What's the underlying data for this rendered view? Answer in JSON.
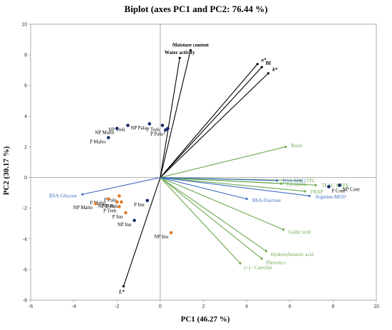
{
  "chart_data": {
    "type": "scatter",
    "title": "Biplot (axes PC1 and PC2: 76.44 %)",
    "xlabel": "PC1 (46.27 %)",
    "ylabel": "PC2 (30.17 %)",
    "xlim": [
      -6,
      10
    ],
    "ylim": [
      -8,
      10
    ],
    "xticks": [
      -6,
      -4,
      -2,
      0,
      2,
      4,
      6,
      8,
      10
    ],
    "yticks": [
      -8,
      -6,
      -4,
      -2,
      0,
      2,
      4,
      6,
      8,
      10
    ],
    "grid": false,
    "colors": {
      "navy": "#1a2a6c",
      "orange": "#e07b2a",
      "green": "#6aa84f",
      "blue": "#3d6cc0",
      "black": "#000000"
    },
    "vectors": [
      {
        "label": "Water activity",
        "x": 0.9,
        "y": 7.8,
        "color": "black",
        "bold": true
      },
      {
        "label": "Moisture content",
        "x": 1.4,
        "y": 8.3,
        "color": "black",
        "bold": true
      },
      {
        "label": "a*",
        "x": 4.5,
        "y": 7.4,
        "color": "black",
        "bold": true,
        "italic": true
      },
      {
        "label": "BI",
        "x": 4.7,
        "y": 7.2,
        "color": "black",
        "bold": true
      },
      {
        "label": "b*",
        "x": 5.0,
        "y": 6.8,
        "color": "black",
        "bold": true,
        "italic": true
      },
      {
        "label": "L*",
        "x": -1.7,
        "y": -7.1,
        "color": "black",
        "bold": true,
        "italic": true
      },
      {
        "label": "Rutin",
        "x": 5.8,
        "y": 2.0,
        "color": "green"
      },
      {
        "label": "TPC",
        "x": 6.5,
        "y": -0.2,
        "color": "green"
      },
      {
        "label": "Lycopene",
        "x": 5.6,
        "y": -0.4,
        "color": "green"
      },
      {
        "label": "TEAC ABTS",
        "x": 7.2,
        "y": -0.5,
        "color": "green"
      },
      {
        "label": "FRAP",
        "x": 6.7,
        "y": -0.9,
        "color": "green"
      },
      {
        "label": "Gallic acid",
        "x": 5.7,
        "y": -3.4,
        "color": "green"
      },
      {
        "label": "Hydroxybenzoic acid",
        "x": 4.9,
        "y": -4.8,
        "color": "green"
      },
      {
        "label": "Phenolics",
        "x": 4.7,
        "y": -5.3,
        "color": "green"
      },
      {
        "label": "(+) - Catechin",
        "x": 3.7,
        "y": -5.6,
        "color": "green"
      },
      {
        "label": "BSA-MGO",
        "x": 5.4,
        "y": -0.2,
        "color": "blue"
      },
      {
        "label": "BSA-Fructose",
        "x": 4.0,
        "y": -1.4,
        "color": "blue"
      },
      {
        "label": "Arginine-MGO",
        "x": 6.9,
        "y": -1.2,
        "color": "blue"
      },
      {
        "label": "BSA-Glucose",
        "x": -3.6,
        "y": -1.1,
        "color": "blue"
      }
    ],
    "points": [
      {
        "label": "NP Pala",
        "x": -0.5,
        "y": 3.5,
        "color": "navy"
      },
      {
        "label": "NP Treh",
        "x": -1.5,
        "y": 3.4,
        "color": "navy"
      },
      {
        "label": "NP Malto",
        "x": -2.0,
        "y": 3.2,
        "color": "navy"
      },
      {
        "label": "P Malto",
        "x": -2.4,
        "y": 2.6,
        "color": "navy"
      },
      {
        "label": "P Treh",
        "x": 0.1,
        "y": 3.4,
        "color": "navy"
      },
      {
        "label": "I",
        "x": 0.35,
        "y": 3.2,
        "color": "navy",
        "italic": true
      },
      {
        "label": "P Pala",
        "x": 0.25,
        "y": 3.1,
        "color": "navy"
      },
      {
        "label": "P Cont",
        "x": 7.8,
        "y": -0.6,
        "color": "navy"
      },
      {
        "label": "NP Cont",
        "x": 8.3,
        "y": -0.5,
        "color": "navy"
      },
      {
        "label": "P Inu",
        "x": -0.6,
        "y": -1.5,
        "color": "navy"
      },
      {
        "label": "NP Inu",
        "x": -1.2,
        "y": -2.8,
        "color": "navy"
      },
      {
        "label": "P Pala",
        "x": -1.9,
        "y": -1.2,
        "color": "orange"
      },
      {
        "label": "P Malto",
        "x": -2.4,
        "y": -1.4,
        "color": "orange"
      },
      {
        "label": "NP Treh",
        "x": -2.0,
        "y": -1.6,
        "color": "orange"
      },
      {
        "label": "NP Pala",
        "x": -1.8,
        "y": -1.6,
        "color": "orange"
      },
      {
        "label": "NP Malto",
        "x": -3.0,
        "y": -1.7,
        "color": "orange"
      },
      {
        "label": "P Treh",
        "x": -1.9,
        "y": -1.9,
        "color": "orange"
      },
      {
        "label": "P Inu",
        "x": -1.6,
        "y": -2.3,
        "color": "orange"
      },
      {
        "label": "NP Inu",
        "x": 0.5,
        "y": -3.6,
        "color": "orange"
      }
    ]
  }
}
